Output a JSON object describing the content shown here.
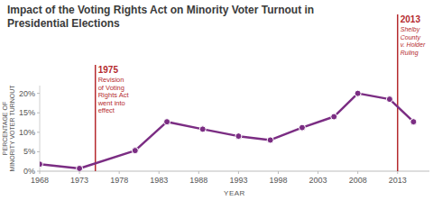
{
  "chart_data": {
    "type": "line",
    "title": "Impact of the Voting Rights Act on Minority Voter Turnout in Presidential Elections",
    "x_label": "YEAR",
    "y_label": "PERCENTAGE OF MINORITY VOTER TURNOUT",
    "x": [
      1968,
      1973,
      1980,
      1984,
      1988.5,
      1993,
      1997,
      2001,
      2005,
      2008,
      2012,
      2015
    ],
    "values": [
      1.8,
      0.7,
      5.3,
      12.7,
      10.8,
      9,
      8,
      11.2,
      14,
      20,
      18.5,
      12.7
    ],
    "color": "#7b2d83",
    "marker": "circle",
    "xlim": [
      1968,
      2017
    ],
    "xticks": [
      1968,
      1973,
      1978,
      1983,
      1988,
      1993,
      1998,
      2003,
      2008,
      2013
    ],
    "ylim": [
      0,
      22
    ],
    "yticks": [
      {
        "value": 0,
        "label": "0%"
      },
      {
        "value": 5,
        "label": "5%"
      },
      {
        "value": 10,
        "label": "10%"
      },
      {
        "value": 15,
        "label": "15%"
      },
      {
        "value": 20,
        "label": "20%"
      }
    ],
    "grid": false,
    "annotations": [
      {
        "x": 1975,
        "label": "1975",
        "text": [
          "Revision",
          "of Voting",
          "Rights Act",
          "went into",
          "effect"
        ],
        "color": "#b52a2e"
      },
      {
        "x": 2013,
        "label": "2013",
        "text": [
          "Shelby",
          "County",
          "v. Holder",
          "Ruling"
        ],
        "color": "#b52a2e"
      }
    ]
  }
}
